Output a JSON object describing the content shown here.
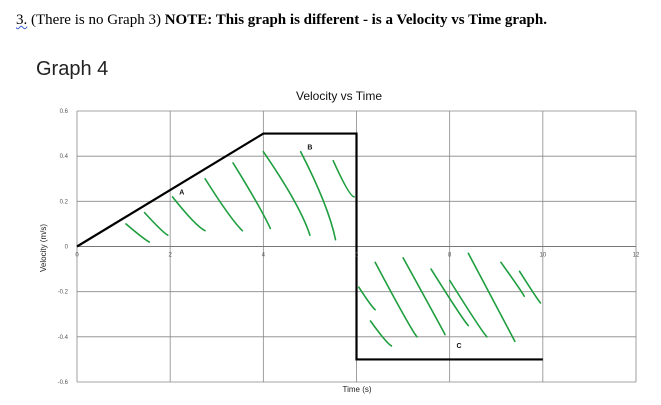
{
  "document": {
    "question_number": "3.",
    "note_plain": " (There is no Graph 3) ",
    "note_bold": "NOTE: This graph is different - is a Velocity vs Time graph."
  },
  "graph_heading": "Graph 4",
  "chart_data": {
    "type": "line",
    "title": "Velocity vs Time",
    "xlabel": "Time (s)",
    "ylabel": "Velocity (m/s)",
    "xlim": [
      0,
      12
    ],
    "ylim": [
      -0.6,
      0.6
    ],
    "x_ticks": [
      "0",
      "2",
      "4",
      "6",
      "8",
      "10",
      "12"
    ],
    "y_ticks": [
      "0.6",
      "0.4",
      "0.2",
      "0",
      "-0.2",
      "-0.4",
      "-0.6"
    ],
    "grid": true,
    "series": [
      {
        "color": "#000000",
        "points": [
          {
            "x": 0,
            "y": 0
          },
          {
            "x": 4,
            "y": 0.5
          },
          {
            "x": 6,
            "y": 0.5
          },
          {
            "x": 6,
            "y": -0.5
          },
          {
            "x": 10,
            "y": -0.5
          }
        ]
      }
    ],
    "annotations": [
      {
        "text": "A",
        "x": 2.25,
        "y": 0.23
      },
      {
        "text": "B",
        "x": 5.0,
        "y": 0.43
      },
      {
        "text": "C",
        "x": 8.2,
        "y": -0.45
      }
    ],
    "shading_color": "#1e9e3e"
  }
}
